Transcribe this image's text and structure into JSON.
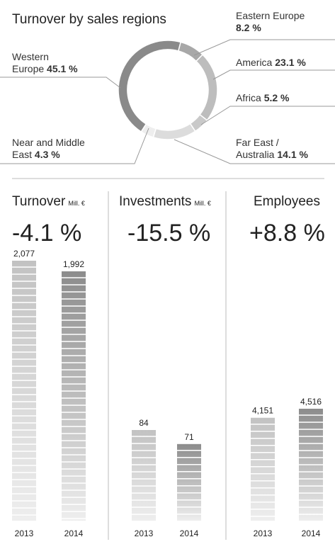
{
  "chart_data": [
    {
      "type": "pie",
      "title": "Turnover by sales regions",
      "categories": [
        "Eastern Europe",
        "America",
        "Africa",
        "Far East / Australia",
        "Near and Middle East",
        "Western Europe"
      ],
      "values": [
        8.2,
        23.1,
        5.2,
        14.1,
        4.3,
        45.1
      ],
      "value_labels": [
        "8.2 %",
        "23.1 %",
        "5.2 %",
        "14.1 %",
        "4.3 %",
        "45.1 %"
      ],
      "colors": [
        "#a8a8a8",
        "#bdbdbd",
        "#c9c9c9",
        "#dcdcdc",
        "#eeeeee",
        "#8a8a8a"
      ]
    },
    {
      "type": "bar",
      "title": "Turnover",
      "subtitle": "Mill. €",
      "annotation": "-4.1 %",
      "categories": [
        "2013",
        "2014"
      ],
      "values": [
        2077,
        1992
      ],
      "value_labels": [
        "2,077",
        "1,992"
      ],
      "colors": [
        "#c2c2c2",
        "#8c8c8c"
      ]
    },
    {
      "type": "bar",
      "title": "Investments",
      "subtitle": "Mill. €",
      "annotation": "-15.5 %",
      "categories": [
        "2013",
        "2014"
      ],
      "values": [
        84,
        71
      ],
      "colors": [
        "#c2c2c2",
        "#8c8c8c"
      ]
    },
    {
      "type": "bar",
      "title": "Employees",
      "annotation": "+8.8 %",
      "categories": [
        "2013",
        "2014"
      ],
      "values": [
        4151,
        4516
      ],
      "value_labels": [
        "4,151",
        "4,516"
      ],
      "colors": [
        "#c2c2c2",
        "#8c8c8c"
      ]
    }
  ]
}
